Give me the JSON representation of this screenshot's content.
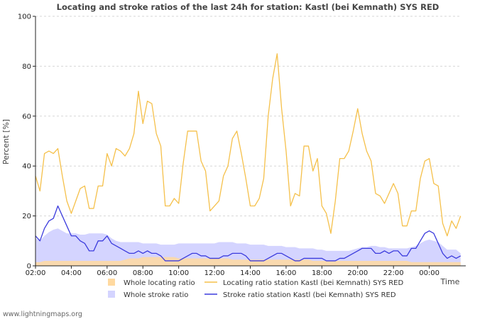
{
  "chart_data": {
    "type": "line",
    "title": "Locating and stroke ratios of the last 24h for station: Kastl (bei Kemnath) SYS RED",
    "xlabel": "Time",
    "ylabel": "Percent   [%]",
    "ylim": [
      0,
      100
    ],
    "yticks": [
      "0",
      "20",
      "40",
      "60",
      "80",
      "100"
    ],
    "xlim": [
      0,
      23.8
    ],
    "xticks": [
      {
        "label": "02:00",
        "h": 0
      },
      {
        "label": "04:00",
        "h": 2
      },
      {
        "label": "06:00",
        "h": 4
      },
      {
        "label": "08:00",
        "h": 6
      },
      {
        "label": "10:00",
        "h": 8
      },
      {
        "label": "12:00",
        "h": 10
      },
      {
        "label": "14:00",
        "h": 12
      },
      {
        "label": "16:00",
        "h": 14
      },
      {
        "label": "18:00",
        "h": 16
      },
      {
        "label": "20:00",
        "h": 18
      },
      {
        "label": "22:00",
        "h": 20
      },
      {
        "label": "00:00",
        "h": 22
      }
    ],
    "x_step_hours": 0.25,
    "grid": "horizontal-dashed",
    "colors": {
      "whole_locating": "#ffd9a0",
      "whole_stroke": "#d4d4ff",
      "locating_line": "#f5c04a",
      "stroke_line": "#3b3bdd"
    },
    "series": [
      {
        "name": "Locating ratio station Kastl (bei Kemnath) SYS RED",
        "style": "line",
        "values": [
          36,
          30,
          45,
          46,
          45,
          47,
          36,
          26,
          21,
          26,
          31,
          32,
          23,
          23,
          32,
          32,
          45,
          40,
          47,
          46,
          44,
          47,
          53,
          70,
          57,
          66,
          65,
          53,
          48,
          24,
          24,
          27,
          25,
          41,
          54,
          54,
          54,
          42,
          38,
          22,
          24,
          26,
          36,
          40,
          51,
          54,
          45,
          35,
          24,
          24,
          27,
          35,
          60,
          75,
          85,
          63,
          46,
          24,
          29,
          28,
          48,
          48,
          38,
          43,
          24,
          21,
          13,
          26,
          43,
          43,
          46,
          54,
          63,
          53,
          46,
          42,
          29,
          28,
          25,
          29,
          33,
          29,
          16,
          16,
          22,
          22,
          35,
          42,
          43,
          33,
          32,
          17,
          12,
          18,
          15,
          20
        ]
      },
      {
        "name": "Stroke ratio station Kastl (bei Kemnath) SYS RED",
        "style": "line",
        "values": [
          12,
          10,
          15,
          18,
          19,
          24,
          20,
          16,
          12,
          12,
          10,
          9,
          6,
          6,
          10,
          10,
          12,
          9,
          8,
          7,
          6,
          5,
          5,
          6,
          5,
          6,
          5,
          5,
          4,
          2,
          2,
          2,
          2,
          3,
          4,
          5,
          5,
          4,
          4,
          3,
          3,
          3,
          4,
          4,
          5,
          5,
          5,
          4,
          2,
          2,
          2,
          2,
          3,
          4,
          5,
          5,
          4,
          3,
          2,
          2,
          3,
          3,
          3,
          3,
          3,
          2,
          2,
          2,
          3,
          3,
          4,
          5,
          6,
          7,
          7,
          7,
          5,
          5,
          6,
          5,
          6,
          6,
          4,
          4,
          7,
          7,
          10,
          13,
          14,
          13,
          9,
          5,
          3,
          4,
          3,
          4
        ]
      },
      {
        "name": "Whole locating ratio",
        "style": "area",
        "values": [
          1.5,
          1.5,
          2,
          2,
          2,
          2,
          2,
          2,
          2,
          2,
          2,
          2,
          2,
          2,
          2,
          2,
          2,
          2,
          2,
          2,
          2.5,
          3,
          3,
          3,
          3.5,
          3.5,
          3.5,
          3.5,
          3.5,
          3.5,
          3.5,
          3.5,
          3,
          3,
          3,
          3,
          3,
          3,
          3,
          3,
          3,
          3,
          3,
          3,
          2.5,
          2.5,
          2.5,
          2.5,
          2.5,
          2.5,
          2.5,
          2.5,
          2.5,
          2.5,
          2.5,
          2.5,
          2.5,
          2.5,
          2.5,
          2.5,
          2.5,
          2.5,
          2,
          2,
          2,
          2,
          2,
          2,
          2,
          2,
          2,
          2,
          2,
          2,
          2,
          2,
          2,
          2,
          2,
          2,
          2,
          2,
          2,
          2,
          1.5,
          1.5,
          1.5,
          1.5,
          1.5,
          1.5,
          1.5,
          1.5,
          1.5,
          1.5,
          1.5,
          1.5
        ]
      },
      {
        "name": "Whole stroke ratio",
        "style": "area",
        "values": [
          11,
          10,
          12,
          13.5,
          14.5,
          15,
          14,
          13,
          13,
          13,
          12.5,
          12.5,
          13,
          13,
          13,
          13,
          12.5,
          11,
          10,
          9.5,
          9.5,
          9.5,
          9.5,
          9.5,
          9,
          9,
          9,
          9,
          8.5,
          8.5,
          8.5,
          8.5,
          9,
          9,
          9,
          9,
          9,
          9,
          9,
          9,
          9,
          9.5,
          9.5,
          9.5,
          9.5,
          9,
          9,
          9,
          8.5,
          8.5,
          8.5,
          8.5,
          8,
          8,
          8,
          8,
          7.5,
          7.5,
          7.5,
          7,
          7,
          7,
          7,
          6.5,
          6.5,
          6,
          6,
          6,
          6,
          6,
          6,
          6.5,
          7,
          7.5,
          7.5,
          8,
          8,
          7.5,
          7.5,
          7,
          7,
          7,
          7,
          7,
          7.5,
          8,
          9,
          10,
          10.5,
          10,
          9.5,
          8,
          6.5,
          6.5,
          6.5,
          5
        ]
      }
    ],
    "legend": [
      {
        "key": "whole_locating",
        "label": "Whole locating ratio",
        "kind": "swatch"
      },
      {
        "key": "locating_line",
        "label": "Locating ratio station Kastl (bei Kemnath) SYS RED",
        "kind": "line"
      },
      {
        "key": "whole_stroke",
        "label": "Whole stroke ratio",
        "kind": "swatch"
      },
      {
        "key": "stroke_line",
        "label": "Stroke ratio station Kastl (bei Kemnath) SYS RED",
        "kind": "line"
      }
    ]
  },
  "footer": "www.lightningmaps.org"
}
